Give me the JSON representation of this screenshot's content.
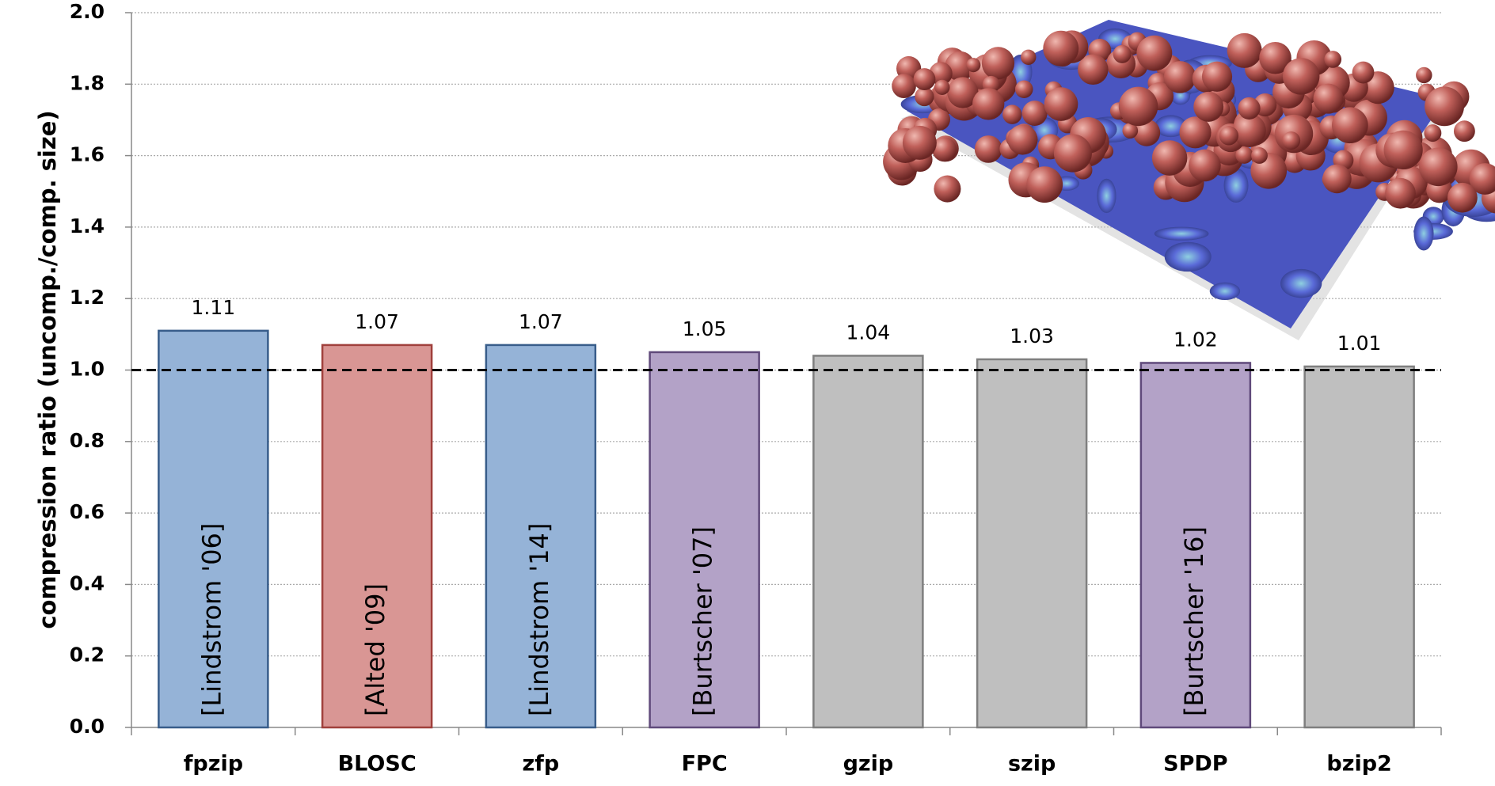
{
  "chart_data": {
    "type": "bar",
    "y_label": "compression ratio (uncomp./comp. size)",
    "categories": [
      "fpzip",
      "BLOSC",
      "zfp",
      "FPC",
      "gzip",
      "szip",
      "SPDP",
      "bzip2"
    ],
    "values": [
      1.11,
      1.07,
      1.07,
      1.05,
      1.04,
      1.03,
      1.02,
      1.01
    ],
    "bar_labels": [
      "[Lindstrom '06]",
      "[Alted '09]",
      "[Lindstrom '14]",
      "[Burtscher '07]",
      null,
      null,
      "[Burtscher '16]",
      null
    ],
    "colors": [
      "#95b3d7",
      "#d99694",
      "#95b3d7",
      "#b3a2c7",
      "#bfbfbf",
      "#bfbfbf",
      "#b3a2c7",
      "#bfbfbf"
    ],
    "edge_colors": [
      "#385d8a",
      "#a0403c",
      "#385d8a",
      "#604a7b",
      "#7f7f7f",
      "#7f7f7f",
      "#604a7b",
      "#7f7f7f"
    ],
    "ylim": [
      0,
      2
    ],
    "yticks": [
      {
        "value": 0,
        "label": "0.0"
      },
      0.2,
      0.4,
      0.6,
      0.8,
      {
        "value": 1,
        "label": "1.0"
      },
      1.2,
      1.4,
      1.6,
      1.8,
      {
        "value": 2,
        "label": "2.0"
      }
    ],
    "reference_line": 1,
    "grid": true
  }
}
